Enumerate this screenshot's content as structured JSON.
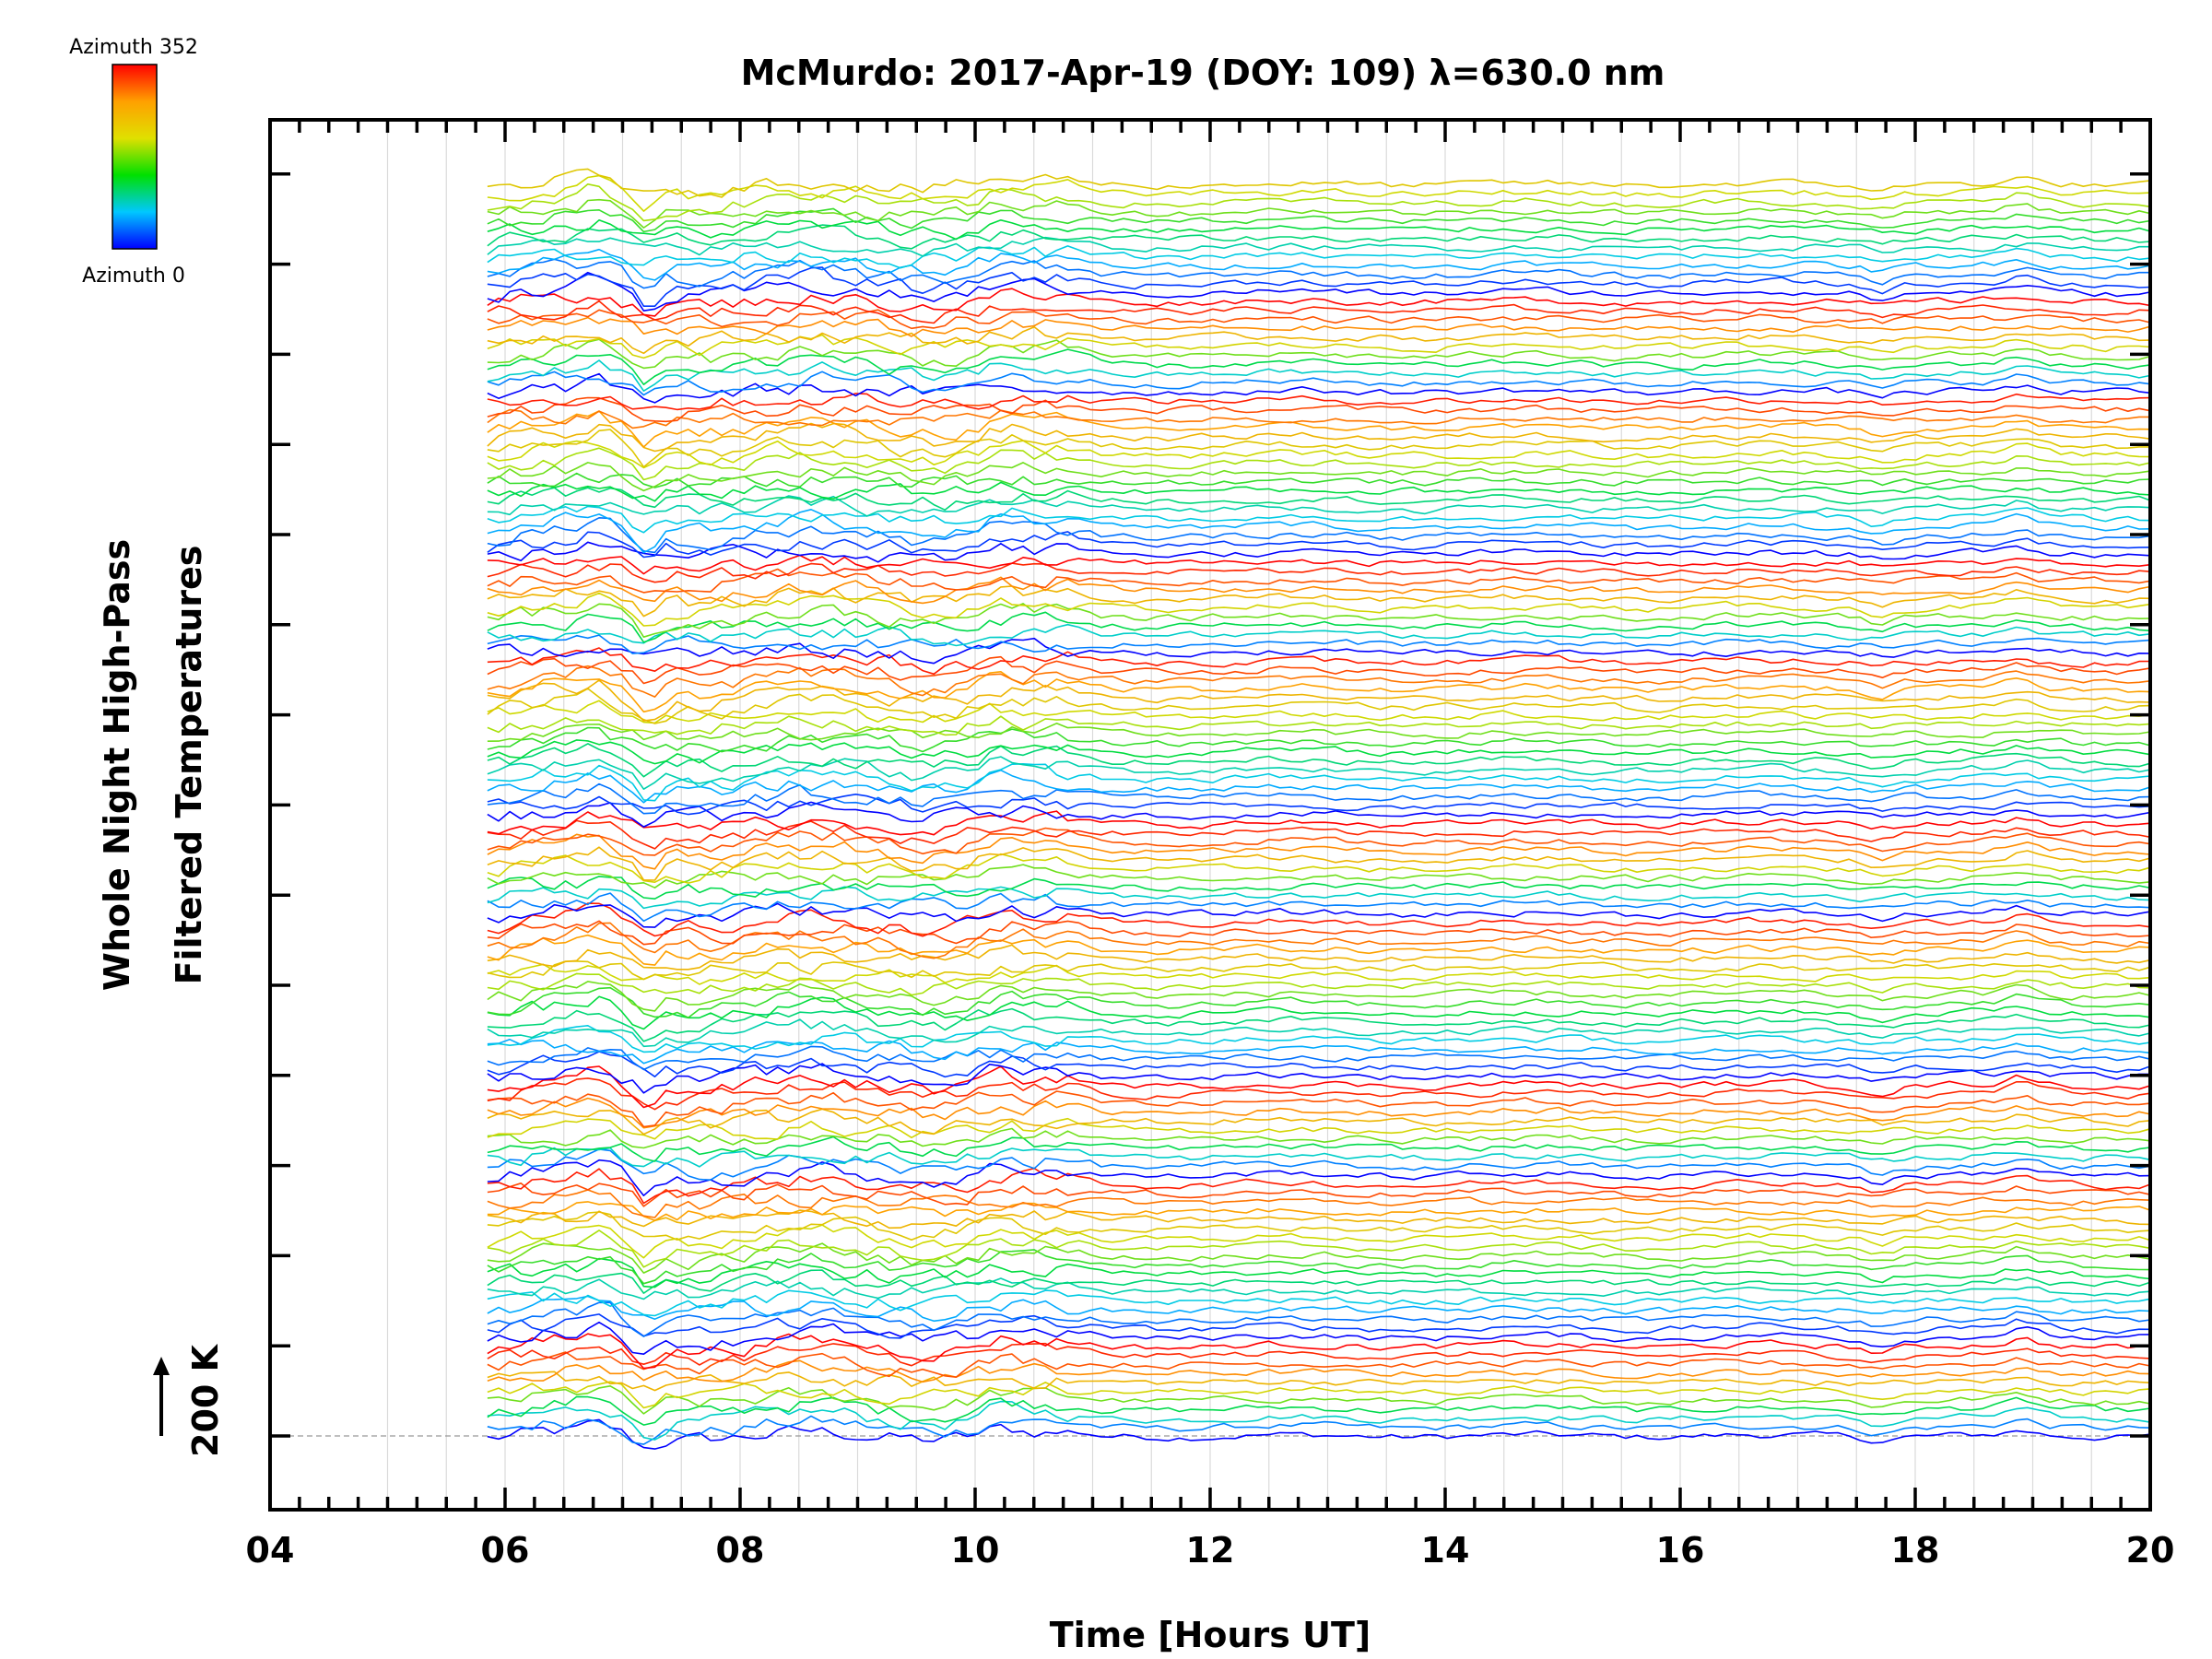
{
  "chart_data": {
    "type": "line",
    "title": "McMurdo: 2017-Apr-19 (DOY: 109) λ=630.0 nm",
    "xlabel": "Time [Hours UT]",
    "ylabel_line1": "Whole Night High-Pass",
    "ylabel_line2": "Filtered Temperatures",
    "xlim": [
      4,
      20
    ],
    "x_tick_labels": [
      "04",
      "06",
      "08",
      "10",
      "12",
      "14",
      "16",
      "18",
      "20"
    ],
    "x_tick_values": [
      4,
      6,
      8,
      10,
      12,
      14,
      16,
      18,
      20
    ],
    "data_start_hour": 5.85,
    "data_end_hour": 20,
    "scale_bar_label": "200 K",
    "series_count": 140,
    "series_spacing_K": 10,
    "colorbar": {
      "top_label": "Azimuth 352",
      "bottom_label": "Azimuth 0",
      "azimuth_min": 0,
      "azimuth_max": 352,
      "colors": [
        "#0000ff",
        "#00c8ff",
        "#00e000",
        "#e0e000",
        "#ffa000",
        "#ff0000"
      ]
    },
    "azimuth_cycle": [
      0,
      45,
      90,
      135,
      180,
      225,
      260,
      290,
      315,
      335,
      352,
      0,
      20,
      40,
      60,
      80,
      100,
      120,
      140,
      160,
      180,
      200,
      220,
      240,
      260,
      280,
      300,
      320,
      340
    ]
  }
}
